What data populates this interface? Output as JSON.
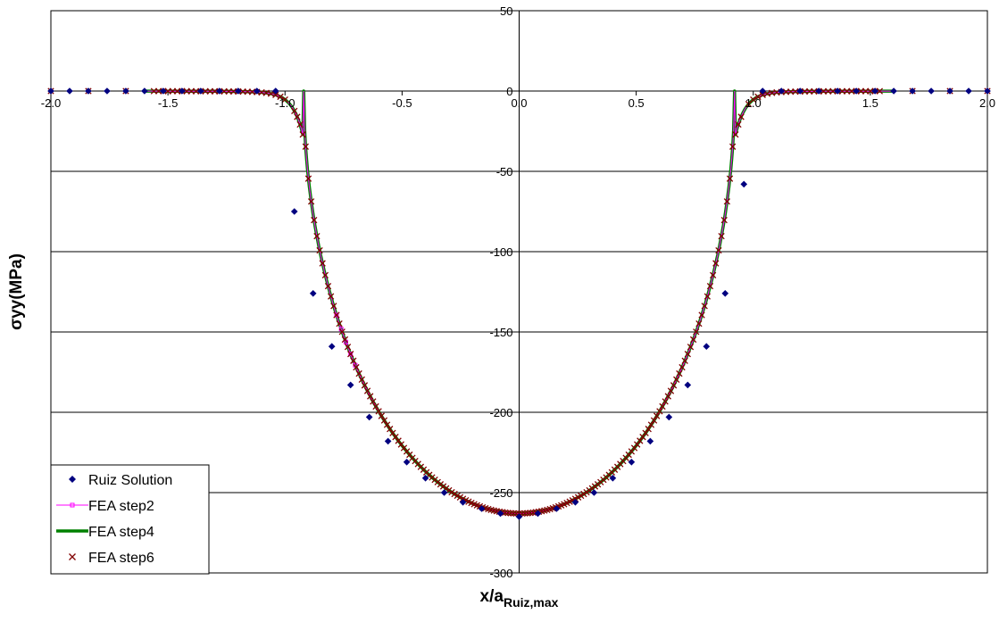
{
  "chart_data": {
    "type": "scatter",
    "title": "",
    "xlabel": "x/a",
    "xlabel_sub": "Ruiz,max",
    "ylabel": "σyy(MPa)",
    "xlim": [
      -2.0,
      2.0
    ],
    "ylim": [
      -300,
      50
    ],
    "x_ticks": [
      -2.0,
      -1.5,
      -1.0,
      -0.5,
      0.0,
      0.5,
      1.0,
      1.5,
      2.0
    ],
    "x_tick_labels": [
      "-2.0",
      "-1.5",
      "-1.0",
      "-0.5",
      "0.0",
      "0.5",
      "1.0",
      "1.5",
      "2.0"
    ],
    "y_ticks": [
      50,
      0,
      -50,
      -100,
      -150,
      -200,
      -250,
      -300
    ],
    "y_tick_labels": [
      "50",
      "0",
      "-50",
      "-100",
      "-150",
      "-200",
      "-250",
      "-300"
    ],
    "grid": "horizontal major gridlines",
    "legend_position": "bottom-left",
    "contact_half_width": 0.92,
    "peak_pressure": -263,
    "series": [
      {
        "name": "Ruiz Solution",
        "marker": "diamond",
        "color": "#000080",
        "x": [
          -2.0,
          -1.92,
          -1.84,
          -1.76,
          -1.68,
          -1.6,
          -1.52,
          -1.44,
          -1.36,
          -1.28,
          -1.2,
          -1.12,
          -1.04,
          -0.96,
          -0.88,
          -0.8,
          -0.72,
          -0.64,
          -0.56,
          -0.48,
          -0.4,
          -0.32,
          -0.24,
          -0.16,
          -0.08,
          0.0,
          0.08,
          0.16,
          0.24,
          0.32,
          0.4,
          0.48,
          0.56,
          0.64,
          0.72,
          0.8,
          0.88,
          0.96,
          1.04,
          1.12,
          1.2,
          1.28,
          1.36,
          1.44,
          1.52,
          1.6,
          1.68,
          1.76,
          1.84,
          1.92,
          2.0
        ],
        "y": [
          0,
          0,
          0,
          0,
          0,
          0,
          0,
          0,
          0,
          0,
          0,
          0,
          0,
          -75,
          -126,
          -159,
          -183,
          -203,
          -218,
          -231,
          -241,
          -250,
          -256,
          -260,
          -263,
          -265,
          -263,
          -260,
          -256,
          -250,
          -241,
          -231,
          -218,
          -203,
          -183,
          -159,
          -126,
          -58,
          0,
          0,
          0,
          0,
          0,
          0,
          0,
          0,
          0,
          0,
          0,
          0,
          0
        ]
      },
      {
        "name": "FEA step2",
        "marker": "square",
        "color": "#FF00FF",
        "line_width": 1
      },
      {
        "name": "FEA step4",
        "marker": "none",
        "color": "#008000",
        "line_width": 3.5
      },
      {
        "name": "FEA step6",
        "marker": "x",
        "color": "#800000",
        "line_width": 0
      }
    ]
  }
}
